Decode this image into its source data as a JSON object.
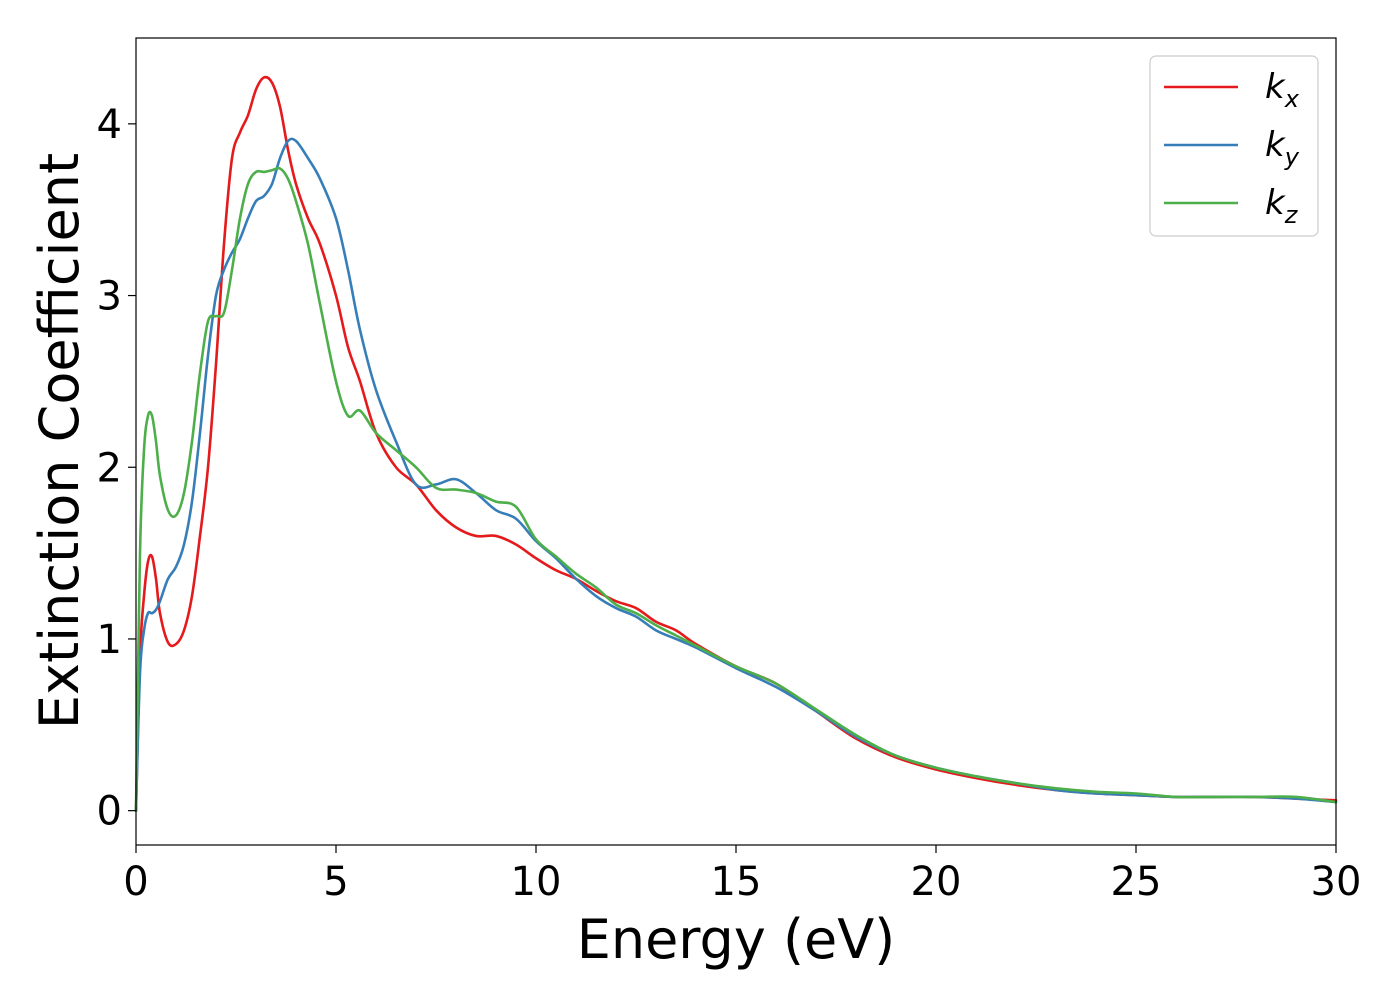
{
  "chart_data": {
    "type": "line",
    "xlabel": "Energy (eV)",
    "ylabel": "Extinction Coefficient",
    "xlim": [
      0,
      30
    ],
    "ylim": [
      -0.2,
      4.5
    ],
    "x_ticks": [
      "0",
      "5",
      "10",
      "15",
      "20",
      "25",
      "30"
    ],
    "y_ticks": [
      "0",
      "1",
      "2",
      "3",
      "4"
    ],
    "grid": false,
    "legend_position": "top-right",
    "series": [
      {
        "name": "k",
        "subscript": "x",
        "color": "#e41a1c",
        "x": [
          0,
          0.1,
          0.2,
          0.3,
          0.4,
          0.5,
          0.6,
          0.8,
          1.0,
          1.2,
          1.4,
          1.6,
          1.8,
          2.0,
          2.2,
          2.4,
          2.6,
          2.8,
          3.0,
          3.2,
          3.4,
          3.6,
          3.8,
          4.0,
          4.3,
          4.6,
          5.0,
          5.3,
          5.6,
          6.0,
          6.5,
          7.0,
          7.5,
          8.0,
          8.5,
          9.0,
          9.5,
          10.0,
          10.5,
          11.0,
          11.5,
          12.0,
          12.5,
          13.0,
          13.5,
          14.0,
          15.0,
          16.0,
          17.0,
          18.0,
          19.0,
          20.0,
          21.0,
          22.0,
          23.0,
          24.0,
          25.0,
          26.0,
          27.0,
          28.0,
          29.0,
          30.0
        ],
        "y": [
          0,
          0.9,
          1.25,
          1.45,
          1.48,
          1.35,
          1.15,
          0.98,
          0.97,
          1.05,
          1.25,
          1.6,
          2.0,
          2.6,
          3.3,
          3.8,
          3.95,
          4.05,
          4.2,
          4.27,
          4.24,
          4.1,
          3.85,
          3.65,
          3.45,
          3.3,
          3.0,
          2.7,
          2.5,
          2.2,
          2.0,
          1.9,
          1.75,
          1.65,
          1.6,
          1.6,
          1.55,
          1.47,
          1.4,
          1.35,
          1.28,
          1.22,
          1.18,
          1.1,
          1.05,
          0.97,
          0.84,
          0.74,
          0.58,
          0.42,
          0.31,
          0.24,
          0.19,
          0.15,
          0.12,
          0.1,
          0.09,
          0.08,
          0.08,
          0.08,
          0.07,
          0.06
        ]
      },
      {
        "name": "k",
        "subscript": "y",
        "color": "#377eb8",
        "x": [
          0,
          0.1,
          0.2,
          0.3,
          0.4,
          0.5,
          0.6,
          0.8,
          1.0,
          1.2,
          1.4,
          1.6,
          1.8,
          2.0,
          2.2,
          2.4,
          2.6,
          2.8,
          3.0,
          3.2,
          3.4,
          3.6,
          3.8,
          4.0,
          4.3,
          4.6,
          5.0,
          5.3,
          5.6,
          6.0,
          6.5,
          7.0,
          7.5,
          8.0,
          8.5,
          9.0,
          9.5,
          10.0,
          10.5,
          11.0,
          11.5,
          12.0,
          12.5,
          13.0,
          13.5,
          14.0,
          15.0,
          16.0,
          17.0,
          18.0,
          19.0,
          20.0,
          21.0,
          22.0,
          23.0,
          24.0,
          25.0,
          26.0,
          27.0,
          28.0,
          29.0,
          30.0
        ],
        "y": [
          0,
          0.8,
          1.05,
          1.15,
          1.15,
          1.17,
          1.22,
          1.35,
          1.42,
          1.55,
          1.8,
          2.2,
          2.65,
          3.0,
          3.15,
          3.25,
          3.33,
          3.45,
          3.55,
          3.58,
          3.65,
          3.8,
          3.9,
          3.9,
          3.8,
          3.68,
          3.45,
          3.15,
          2.8,
          2.45,
          2.15,
          1.9,
          1.9,
          1.93,
          1.85,
          1.75,
          1.7,
          1.57,
          1.47,
          1.35,
          1.25,
          1.18,
          1.13,
          1.05,
          1.0,
          0.95,
          0.83,
          0.72,
          0.58,
          0.43,
          0.32,
          0.25,
          0.2,
          0.16,
          0.12,
          0.1,
          0.09,
          0.08,
          0.08,
          0.08,
          0.07,
          0.05
        ]
      },
      {
        "name": "k",
        "subscript": "z",
        "color": "#4daf4a",
        "x": [
          0,
          0.1,
          0.2,
          0.3,
          0.4,
          0.5,
          0.6,
          0.8,
          1.0,
          1.2,
          1.4,
          1.6,
          1.8,
          2.0,
          2.2,
          2.4,
          2.6,
          2.8,
          3.0,
          3.2,
          3.4,
          3.6,
          3.8,
          4.0,
          4.3,
          4.6,
          5.0,
          5.3,
          5.6,
          6.0,
          6.5,
          7.0,
          7.5,
          8.0,
          8.5,
          9.0,
          9.5,
          10.0,
          10.5,
          11.0,
          11.5,
          12.0,
          12.5,
          13.0,
          13.5,
          14.0,
          15.0,
          16.0,
          17.0,
          18.0,
          19.0,
          20.0,
          21.0,
          22.0,
          23.0,
          24.0,
          25.0,
          26.0,
          27.0,
          28.0,
          29.0,
          30.0
        ],
        "y": [
          0,
          1.5,
          2.1,
          2.3,
          2.3,
          2.15,
          1.95,
          1.75,
          1.72,
          1.85,
          2.15,
          2.55,
          2.85,
          2.88,
          2.9,
          3.15,
          3.45,
          3.65,
          3.72,
          3.72,
          3.73,
          3.74,
          3.68,
          3.55,
          3.3,
          2.95,
          2.5,
          2.3,
          2.33,
          2.2,
          2.1,
          2.0,
          1.88,
          1.87,
          1.85,
          1.8,
          1.77,
          1.58,
          1.48,
          1.38,
          1.3,
          1.2,
          1.15,
          1.08,
          1.02,
          0.96,
          0.84,
          0.74,
          0.59,
          0.44,
          0.32,
          0.25,
          0.2,
          0.16,
          0.13,
          0.11,
          0.1,
          0.08,
          0.08,
          0.08,
          0.08,
          0.05
        ]
      }
    ]
  }
}
